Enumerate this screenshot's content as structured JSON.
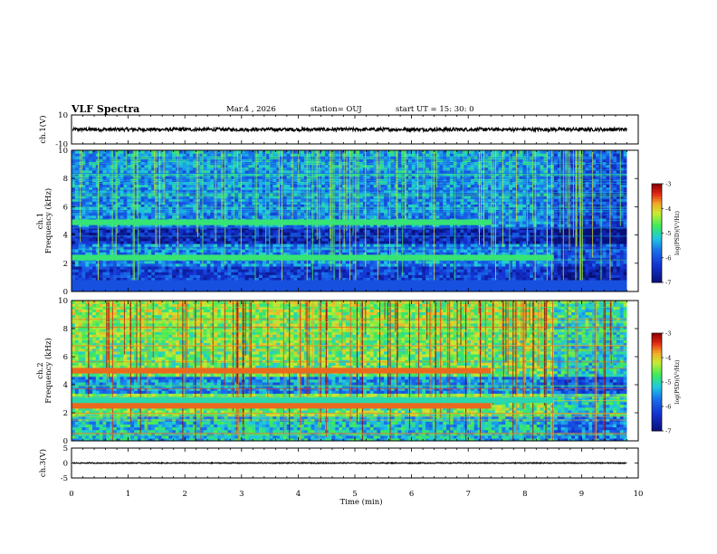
{
  "header": {
    "title": "VLF Spectra",
    "date": "Mar.4 , 2026",
    "station": "station= OUJ",
    "start": "start UT =  15: 30: 0"
  },
  "colors": {
    "deep_blue": "#0a1a8c",
    "blue": "#1c3fd8",
    "cyan": "#20c8e0",
    "green": "#3af04a",
    "yellow": "#f0e040",
    "orange": "#f08020",
    "red": "#d01010",
    "dark_red": "#900000"
  },
  "chart_data": [
    {
      "name": "ch1-waveform",
      "type": "line",
      "ylabel": "ch.1(V)",
      "ylim": [
        -10,
        10
      ],
      "ytick_labels": [
        "10",
        "-10"
      ],
      "xlim": [
        0,
        10
      ],
      "level": 0,
      "noise": 1.2
    },
    {
      "name": "ch1-spectrogram",
      "type": "heatmap",
      "ylabel": "ch.1\nFrequency (kHz)",
      "ylim": [
        0,
        10
      ],
      "ytick_labels": [
        "0",
        "2",
        "4",
        "6",
        "8",
        "10"
      ],
      "xlim": [
        0,
        10
      ],
      "background_log_psd": -5.6,
      "bands": [
        {
          "f1": 4.7,
          "f2": 5.1,
          "t1": 0.0,
          "t2": 7.4,
          "level": -4.8
        },
        {
          "f1": 2.2,
          "f2": 2.6,
          "t1": 0.0,
          "t2": 8.5,
          "level": -4.8
        },
        {
          "f1": 0.0,
          "f2": 0.8,
          "t1": 0.0,
          "t2": 9.8,
          "level": -6.0
        }
      ],
      "colorbar": {
        "label": "log(PSD)(V²/Hz)",
        "ticks": [
          "-3",
          "-4",
          "-5",
          "-6",
          "-7"
        ],
        "range": [
          -7,
          -3
        ]
      }
    },
    {
      "name": "ch2-spectrogram",
      "type": "heatmap",
      "ylabel": "ch.2\nFrequency (kHz)",
      "ylim": [
        0,
        10
      ],
      "ytick_labels": [
        "0",
        "2",
        "4",
        "6",
        "8",
        "10"
      ],
      "xlim": [
        0,
        10
      ],
      "background_log_psd": -4.6,
      "bands": [
        {
          "f1": 4.8,
          "f2": 5.2,
          "t1": 0.0,
          "t2": 7.4,
          "level": -3.6
        },
        {
          "f1": 2.3,
          "f2": 2.7,
          "t1": 0.0,
          "t2": 7.4,
          "level": -3.6
        },
        {
          "f1": 2.7,
          "f2": 3.1,
          "t1": 0.0,
          "t2": 8.5,
          "level": -5.0
        }
      ],
      "colorbar": {
        "label": "log(PSD)(V²/Hz)",
        "ticks": [
          "-3",
          "-4",
          "-5",
          "-6",
          "-7"
        ],
        "range": [
          -7,
          -3
        ]
      }
    },
    {
      "name": "ch3-waveform",
      "type": "line",
      "ylabel": "ch.3(V)",
      "ylim": [
        -5,
        5
      ],
      "ytick_labels": [
        "5",
        "0",
        "-5"
      ],
      "xlim": [
        0,
        10
      ],
      "level": 0,
      "noise": 0.15
    }
  ],
  "xaxis": {
    "label": "Time (min)",
    "ticks": [
      "0",
      "1",
      "2",
      "3",
      "4",
      "5",
      "6",
      "7",
      "8",
      "9",
      "10"
    ]
  }
}
